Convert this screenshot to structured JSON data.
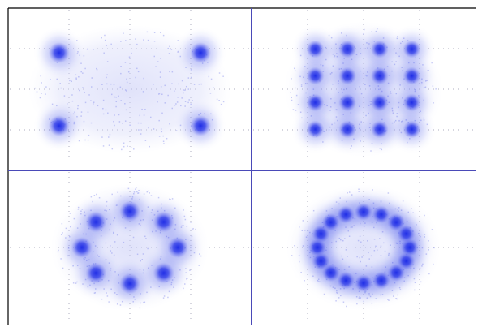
{
  "colors": {
    "background": "#ffffff",
    "frame": "#000000",
    "divider": "#4a4ab8",
    "grid": "#9a9ab0",
    "symbol": "#1f2de6",
    "cloud": "#c8ccf8"
  },
  "chart_data": [
    {
      "type": "scatter",
      "panel": "top-left",
      "title": "",
      "xlabel": "",
      "ylabel": "",
      "xlim": [
        -1.6,
        1.6
      ],
      "ylim": [
        -1.6,
        1.6
      ],
      "grid": true,
      "legend": "none",
      "series": [
        {
          "x": [
            -1,
            1,
            -1,
            1
          ],
          "y": [
            1,
            1,
            -1,
            -1
          ]
        }
      ]
    },
    {
      "type": "scatter",
      "panel": "top-right",
      "title": "",
      "xlabel": "",
      "ylabel": "",
      "xlim": [
        -4.8,
        4.8
      ],
      "ylim": [
        -4.8,
        4.8
      ],
      "grid": true,
      "legend": "none",
      "series": [
        {
          "x": [
            -3,
            -1,
            1,
            3,
            -3,
            -1,
            1,
            3,
            -3,
            -1,
            1,
            3,
            -3,
            -1,
            1,
            3
          ],
          "y": [
            3,
            3,
            3,
            3,
            1,
            1,
            1,
            1,
            -1,
            -1,
            -1,
            -1,
            -3,
            -3,
            -3,
            -3
          ]
        }
      ]
    },
    {
      "type": "scatter",
      "panel": "bottom-left",
      "title": "",
      "xlabel": "",
      "ylabel": "",
      "xlim": [
        -1.6,
        1.6
      ],
      "ylim": [
        -1.6,
        1.6
      ],
      "grid": true,
      "legend": "none",
      "series": [
        {
          "x": [
            1,
            0.707,
            0,
            -0.707,
            -1,
            -0.707,
            0,
            0.707
          ],
          "y": [
            0,
            0.707,
            1,
            0.707,
            0,
            -0.707,
            -1,
            -0.707
          ]
        }
      ]
    },
    {
      "type": "scatter",
      "panel": "bottom-right",
      "title": "",
      "xlabel": "",
      "ylabel": "",
      "xlim": [
        -1.6,
        1.6
      ],
      "ylim": [
        -1.6,
        1.6
      ],
      "grid": true,
      "legend": "none",
      "series": [
        {
          "x": [
            1,
            0.924,
            0.707,
            0.383,
            0,
            -0.383,
            -0.707,
            -0.924,
            -1,
            -0.924,
            -0.707,
            -0.383,
            0,
            0.383,
            0.707,
            0.924
          ],
          "y": [
            0,
            0.383,
            0.707,
            0.924,
            1,
            0.924,
            0.707,
            0.383,
            0,
            -0.383,
            -0.707,
            -0.924,
            -1,
            -0.924,
            -0.707,
            -0.383
          ]
        }
      ]
    }
  ]
}
